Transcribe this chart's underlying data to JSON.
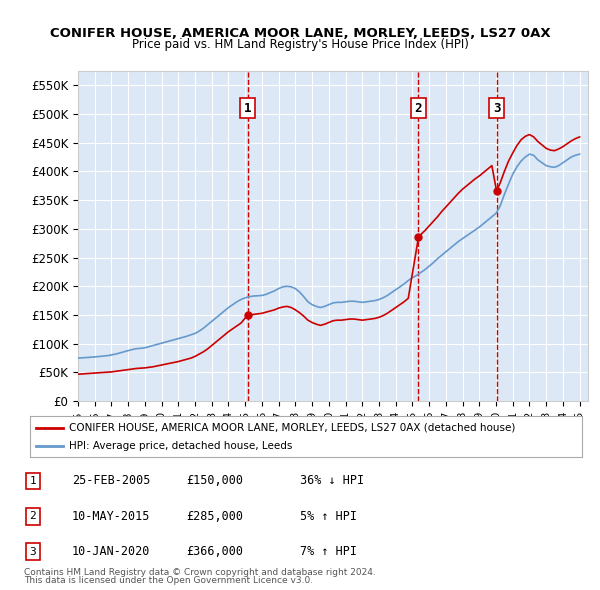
{
  "title": "CONIFER HOUSE, AMERICA MOOR LANE, MORLEY, LEEDS, LS27 0AX",
  "subtitle": "Price paid vs. HM Land Registry's House Price Index (HPI)",
  "background_color": "#e8f0f8",
  "plot_bg_color": "#dce8f5",
  "ylim": [
    0,
    575000
  ],
  "yticks": [
    0,
    50000,
    100000,
    150000,
    200000,
    250000,
    300000,
    350000,
    400000,
    450000,
    500000,
    550000
  ],
  "ytick_labels": [
    "£0",
    "£50K",
    "£100K",
    "£150K",
    "£200K",
    "£250K",
    "£300K",
    "£350K",
    "£400K",
    "£450K",
    "£500K",
    "£550K"
  ],
  "year_start": 1995,
  "year_end": 2025,
  "sale_dates": [
    2005.15,
    2015.36,
    2020.03
  ],
  "sale_prices": [
    150000,
    285000,
    366000
  ],
  "sale_labels": [
    "1",
    "2",
    "3"
  ],
  "legend_line1": "CONIFER HOUSE, AMERICA MOOR LANE, MORLEY, LEEDS, LS27 0AX (detached house)",
  "legend_line2": "HPI: Average price, detached house, Leeds",
  "table_data": [
    [
      "1",
      "25-FEB-2005",
      "£150,000",
      "36% ↓ HPI"
    ],
    [
      "2",
      "10-MAY-2015",
      "£285,000",
      "5% ↑ HPI"
    ],
    [
      "3",
      "10-JAN-2020",
      "£366,000",
      "7% ↑ HPI"
    ]
  ],
  "footer_line1": "Contains HM Land Registry data © Crown copyright and database right 2024.",
  "footer_line2": "This data is licensed under the Open Government Licence v3.0.",
  "red_line_color": "#cc0000",
  "blue_line_color": "#6699cc",
  "vline_color": "#cc0000",
  "hpi_data_x": [
    1995.0,
    1995.25,
    1995.5,
    1995.75,
    1996.0,
    1996.25,
    1996.5,
    1996.75,
    1997.0,
    1997.25,
    1997.5,
    1997.75,
    1998.0,
    1998.25,
    1998.5,
    1998.75,
    1999.0,
    1999.25,
    1999.5,
    1999.75,
    2000.0,
    2000.25,
    2000.5,
    2000.75,
    2001.0,
    2001.25,
    2001.5,
    2001.75,
    2002.0,
    2002.25,
    2002.5,
    2002.75,
    2003.0,
    2003.25,
    2003.5,
    2003.75,
    2004.0,
    2004.25,
    2004.5,
    2004.75,
    2005.0,
    2005.25,
    2005.5,
    2005.75,
    2006.0,
    2006.25,
    2006.5,
    2006.75,
    2007.0,
    2007.25,
    2007.5,
    2007.75,
    2008.0,
    2008.25,
    2008.5,
    2008.75,
    2009.0,
    2009.25,
    2009.5,
    2009.75,
    2010.0,
    2010.25,
    2010.5,
    2010.75,
    2011.0,
    2011.25,
    2011.5,
    2011.75,
    2012.0,
    2012.25,
    2012.5,
    2012.75,
    2013.0,
    2013.25,
    2013.5,
    2013.75,
    2014.0,
    2014.25,
    2014.5,
    2014.75,
    2015.0,
    2015.25,
    2015.5,
    2015.75,
    2016.0,
    2016.25,
    2016.5,
    2016.75,
    2017.0,
    2017.25,
    2017.5,
    2017.75,
    2018.0,
    2018.25,
    2018.5,
    2018.75,
    2019.0,
    2019.25,
    2019.5,
    2019.75,
    2020.0,
    2020.25,
    2020.5,
    2020.75,
    2021.0,
    2021.25,
    2021.5,
    2021.75,
    2022.0,
    2022.25,
    2022.5,
    2022.75,
    2023.0,
    2023.25,
    2023.5,
    2023.75,
    2024.0,
    2024.25,
    2024.5,
    2024.75,
    2025.0
  ],
  "hpi_data_y": [
    75000,
    75500,
    76000,
    76500,
    77000,
    77800,
    78500,
    79200,
    80500,
    82000,
    84000,
    86000,
    88000,
    90000,
    91500,
    92000,
    93000,
    95000,
    97000,
    99000,
    101000,
    103000,
    105000,
    107000,
    109000,
    111000,
    113000,
    115500,
    118000,
    122000,
    127000,
    133000,
    139000,
    145000,
    151000,
    157000,
    163000,
    168000,
    173000,
    177000,
    180000,
    182000,
    183000,
    183500,
    184000,
    186000,
    189000,
    192000,
    196000,
    199000,
    200000,
    199000,
    196000,
    190000,
    182000,
    173000,
    168000,
    165000,
    163000,
    165000,
    168000,
    171000,
    172000,
    172000,
    173000,
    174000,
    174000,
    173000,
    172000,
    173000,
    174000,
    175000,
    177000,
    180000,
    184000,
    189000,
    194000,
    199000,
    204000,
    210000,
    215000,
    219000,
    224000,
    229000,
    235000,
    241000,
    248000,
    254000,
    260000,
    266000,
    272000,
    278000,
    283000,
    288000,
    293000,
    298000,
    303000,
    309000,
    315000,
    321000,
    327000,
    340000,
    360000,
    378000,
    395000,
    408000,
    418000,
    425000,
    430000,
    428000,
    420000,
    415000,
    410000,
    408000,
    407000,
    410000,
    415000,
    420000,
    425000,
    428000,
    430000
  ],
  "price_line_x": [
    1995.0,
    1995.25,
    1995.5,
    1995.75,
    1996.0,
    1996.25,
    1996.5,
    1996.75,
    1997.0,
    1997.25,
    1997.5,
    1997.75,
    1998.0,
    1998.25,
    1998.5,
    1998.75,
    1999.0,
    1999.25,
    1999.5,
    1999.75,
    2000.0,
    2000.25,
    2000.5,
    2000.75,
    2001.0,
    2001.25,
    2001.5,
    2001.75,
    2002.0,
    2002.25,
    2002.5,
    2002.75,
    2003.0,
    2003.25,
    2003.5,
    2003.75,
    2004.0,
    2004.25,
    2004.5,
    2004.75,
    2005.15,
    2005.15,
    2005.5,
    2005.75,
    2006.0,
    2006.25,
    2006.5,
    2006.75,
    2007.0,
    2007.25,
    2007.5,
    2007.75,
    2008.0,
    2008.25,
    2008.5,
    2008.75,
    2009.0,
    2009.25,
    2009.5,
    2009.75,
    2010.0,
    2010.25,
    2010.5,
    2010.75,
    2011.0,
    2011.25,
    2011.5,
    2011.75,
    2012.0,
    2012.25,
    2012.5,
    2012.75,
    2013.0,
    2013.25,
    2013.5,
    2013.75,
    2014.0,
    2014.25,
    2014.5,
    2014.75,
    2015.36,
    2015.36,
    2015.5,
    2015.75,
    2016.0,
    2016.25,
    2016.5,
    2016.75,
    2017.0,
    2017.25,
    2017.5,
    2017.75,
    2018.0,
    2018.25,
    2018.5,
    2018.75,
    2019.0,
    2019.25,
    2019.5,
    2019.75,
    2020.03,
    2020.03,
    2020.25,
    2020.5,
    2020.75,
    2021.0,
    2021.25,
    2021.5,
    2021.75,
    2022.0,
    2022.25,
    2022.5,
    2022.75,
    2023.0,
    2023.25,
    2023.5,
    2023.75,
    2024.0,
    2024.25,
    2024.5,
    2024.75,
    2025.0
  ],
  "price_line_y": [
    47000,
    47500,
    48000,
    48500,
    49000,
    49500,
    50000,
    50500,
    51000,
    52000,
    53000,
    54000,
    55000,
    56000,
    57000,
    57500,
    58000,
    59000,
    60000,
    61500,
    63000,
    64500,
    66000,
    67500,
    69000,
    71000,
    73000,
    75000,
    78000,
    82000,
    86000,
    91000,
    97000,
    103000,
    109000,
    115000,
    121000,
    126000,
    131000,
    136000,
    150000,
    150000,
    151000,
    152000,
    153000,
    155000,
    157000,
    159000,
    162000,
    164000,
    165000,
    163000,
    159000,
    154000,
    148000,
    141000,
    137000,
    134000,
    132000,
    134000,
    137000,
    140000,
    141000,
    141000,
    142000,
    143000,
    143000,
    142000,
    141000,
    142000,
    143000,
    144000,
    146000,
    149000,
    153000,
    158000,
    163000,
    168000,
    173000,
    179000,
    285000,
    285000,
    290000,
    297000,
    305000,
    313000,
    321000,
    330000,
    338000,
    346000,
    354000,
    362000,
    369000,
    375000,
    381000,
    387000,
    392000,
    398000,
    404000,
    410000,
    366000,
    366000,
    380000,
    400000,
    418000,
    432000,
    445000,
    455000,
    461000,
    464000,
    460000,
    452000,
    446000,
    440000,
    437000,
    436000,
    439000,
    443000,
    448000,
    453000,
    457000,
    460000
  ]
}
